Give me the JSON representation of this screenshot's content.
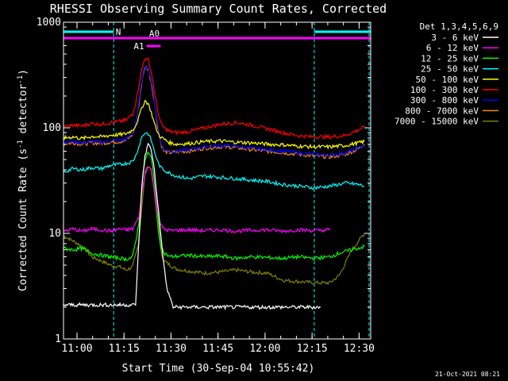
{
  "chart_data": {
    "type": "line",
    "title": "RHESSI Observing Summary Count Rates, Corrected",
    "xlabel": "Start Time (30-Sep-04 10:55:42)",
    "ylabel_parts": [
      "Corrected Count Rate (s",
      "-1",
      " detector",
      "-1",
      ")"
    ],
    "y_scale": "log",
    "ylim": [
      1,
      1000
    ],
    "xlim_min": [
      0,
      98
    ],
    "x_unit": "minutes after 10:55:42",
    "x_ticks": [
      {
        "label": "11:00",
        "min": 4.3
      },
      {
        "label": "11:15",
        "min": 19.3
      },
      {
        "label": "11:30",
        "min": 34.3
      },
      {
        "label": "11:45",
        "min": 49.3
      },
      {
        "label": "12:00",
        "min": 64.3
      },
      {
        "label": "12:15",
        "min": 79.3
      },
      {
        "label": "12:30",
        "min": 94.3
      }
    ],
    "y_ticks": [
      {
        "label": "1",
        "v": 1
      },
      {
        "label": "10",
        "v": 10
      },
      {
        "label": "100",
        "v": 100
      },
      {
        "label": "1000",
        "v": 1000
      }
    ],
    "legend": {
      "header": "Det 1,3,4,5,6,9",
      "placement": "right",
      "entries": [
        {
          "label": "3 - 6 keV",
          "color": "#ffffff"
        },
        {
          "label": "6 - 12 keV",
          "color": "#ff00ff"
        },
        {
          "label": "12 - 25 keV",
          "color": "#00ff00"
        },
        {
          "label": "25 - 50 keV",
          "color": "#00ffff"
        },
        {
          "label": "50 - 100 keV",
          "color": "#ffff00"
        },
        {
          "label": "100 - 300 keV",
          "color": "#ff0000"
        },
        {
          "label": "300 - 800 keV",
          "color": "#0000ff"
        },
        {
          "label": "800 - 7000 keV",
          "color": "#ff8800"
        },
        {
          "label": "7000 - 15000 keV",
          "color": "#808000"
        }
      ]
    },
    "annotations": {
      "night_label": "N",
      "night_intervals": [
        [
          0,
          16
        ],
        [
          80,
          98
        ]
      ],
      "night_color": "#00ffff",
      "vlines_min": [
        16,
        80
      ],
      "vline_color": "#00ffff",
      "attenuator_label": "A0",
      "attenuator_interval": [
        0,
        98
      ],
      "attenuator_color": "#ff00ff",
      "a1_label": "A1",
      "a1_interval": [
        26.5,
        31
      ]
    },
    "series": [
      {
        "name": "3 - 6 keV",
        "color": "#ffffff",
        "x": [
          0,
          2,
          4,
          6,
          8,
          10,
          12,
          14,
          16,
          18,
          20,
          22,
          23,
          24,
          25,
          26,
          27,
          28,
          29,
          30,
          31,
          32,
          33,
          35,
          40,
          45,
          50,
          55,
          60,
          65,
          70,
          75,
          80,
          82
        ],
        "y": [
          2.1,
          2.1,
          2.1,
          2.1,
          2.1,
          2.1,
          2.1,
          2.1,
          2.1,
          2.1,
          2.1,
          2.1,
          2.1,
          8,
          28,
          55,
          70,
          62,
          40,
          20,
          10,
          5,
          3,
          2,
          2,
          2,
          2,
          2,
          2,
          2,
          2,
          2,
          2,
          2
        ]
      },
      {
        "name": "6 - 12 keV",
        "color": "#ff00ff",
        "x": [
          0,
          3,
          6,
          9,
          12,
          15,
          18,
          20,
          22,
          24,
          25,
          26,
          27,
          28,
          29,
          30,
          31,
          32,
          34,
          40,
          45,
          50,
          55,
          60,
          65,
          70,
          75,
          80,
          85
        ],
        "y": [
          10.5,
          11,
          10.5,
          11,
          10.8,
          10.5,
          11,
          10.8,
          11,
          14,
          24,
          38,
          44,
          40,
          26,
          17,
          12,
          11,
          10.6,
          10.8,
          10.6,
          10.8,
          10.5,
          10.7,
          10.8,
          10.5,
          10.8,
          10.6,
          10.8
        ]
      },
      {
        "name": "12 - 25 keV",
        "color": "#00ff00",
        "x": [
          0,
          3,
          6,
          9,
          12,
          15,
          18,
          20,
          22,
          24,
          25,
          26,
          27,
          28,
          29,
          30,
          31,
          32,
          34,
          40,
          45,
          50,
          55,
          60,
          65,
          70,
          75,
          80,
          85,
          88,
          92,
          96
        ],
        "y": [
          7.2,
          7,
          7.2,
          6.5,
          6.2,
          6,
          5.8,
          5.7,
          5.9,
          12,
          28,
          50,
          58,
          52,
          32,
          15,
          8,
          6.5,
          6,
          6.2,
          6,
          6.1,
          5.8,
          6,
          5.9,
          5.8,
          6,
          5.8,
          6,
          6.5,
          7,
          7.5
        ]
      },
      {
        "name": "25 - 50 keV",
        "color": "#00ffff",
        "x": [
          0,
          3,
          6,
          9,
          12,
          15,
          18,
          20,
          22,
          23,
          24,
          25,
          26,
          27,
          28,
          29,
          30,
          31,
          32,
          34,
          36,
          40,
          45,
          50,
          55,
          60,
          65,
          70,
          75,
          80,
          85,
          90,
          94,
          96
        ],
        "y": [
          38,
          41,
          40,
          42,
          41,
          44,
          45,
          46,
          48,
          54,
          66,
          82,
          90,
          88,
          76,
          60,
          48,
          42,
          40,
          37,
          35,
          33,
          35,
          34,
          33,
          32,
          31,
          29,
          28,
          27,
          28,
          30,
          29,
          28
        ]
      },
      {
        "name": "50 - 100 keV",
        "color": "#ffff00",
        "x": [
          0,
          3,
          6,
          9,
          12,
          15,
          18,
          20,
          22,
          23,
          24,
          25,
          26,
          27,
          28,
          29,
          30,
          31,
          32,
          34,
          36,
          40,
          45,
          50,
          55,
          60,
          65,
          70,
          75,
          80,
          85,
          90,
          94,
          96
        ],
        "y": [
          80,
          82,
          79,
          83,
          82,
          85,
          86,
          88,
          95,
          105,
          125,
          155,
          180,
          170,
          140,
          110,
          90,
          82,
          78,
          72,
          70,
          71,
          74,
          75,
          73,
          72,
          70,
          69,
          67,
          66,
          66,
          68,
          72,
          74
        ]
      },
      {
        "name": "100 - 300 keV",
        "color": "#ff0000",
        "x": [
          0,
          3,
          6,
          9,
          12,
          15,
          18,
          20,
          22,
          23,
          24,
          25,
          26,
          27,
          28,
          29,
          30,
          31,
          32,
          34,
          36,
          40,
          45,
          50,
          55,
          60,
          65,
          70,
          75,
          80,
          85,
          90,
          94,
          96
        ],
        "y": [
          102,
          106,
          104,
          110,
          108,
          112,
          115,
          118,
          135,
          170,
          250,
          360,
          460,
          440,
          340,
          220,
          150,
          112,
          100,
          92,
          90,
          92,
          100,
          108,
          112,
          106,
          98,
          90,
          84,
          82,
          82,
          85,
          95,
          102
        ]
      },
      {
        "name": "300 - 800 keV",
        "color": "#0000ff",
        "x": [
          0,
          3,
          6,
          9,
          12,
          15,
          18,
          20,
          22,
          23,
          24,
          25,
          26,
          27,
          28,
          29,
          30,
          31,
          32,
          34,
          36,
          40,
          45,
          50,
          55,
          60,
          65,
          70,
          75,
          80,
          85,
          90,
          94,
          96
        ],
        "y": [
          73,
          74,
          72,
          74,
          73,
          75,
          76,
          78,
          88,
          110,
          170,
          280,
          390,
          370,
          280,
          180,
          110,
          75,
          62,
          60,
          60,
          62,
          66,
          68,
          67,
          64,
          62,
          60,
          58,
          56,
          55,
          58,
          64,
          68
        ]
      },
      {
        "name": "800 - 7000 keV",
        "color": "#ff8800",
        "x": [
          0,
          3,
          6,
          9,
          12,
          15,
          18,
          20,
          22,
          23,
          24,
          25,
          26,
          27,
          28,
          29,
          30,
          31,
          32,
          34,
          36,
          40,
          45,
          50,
          55,
          60,
          65,
          70,
          75,
          80,
          85,
          90,
          94,
          96
        ],
        "y": [
          70,
          72,
          70,
          72,
          71,
          73,
          74,
          76,
          86,
          108,
          165,
          270,
          380,
          360,
          270,
          175,
          105,
          72,
          60,
          58,
          59,
          60,
          64,
          66,
          65,
          62,
          60,
          58,
          56,
          54,
          53,
          56,
          63,
          70
        ]
      },
      {
        "name": "7000 - 15000 keV",
        "color": "#808000",
        "x": [
          0,
          3,
          6,
          9,
          12,
          15,
          18,
          20,
          22,
          24,
          25,
          26,
          27,
          28,
          29,
          30,
          31,
          32,
          34,
          36,
          40,
          45,
          50,
          55,
          60,
          65,
          70,
          75,
          80,
          85,
          88,
          92,
          96
        ],
        "y": [
          9.5,
          8.5,
          7.5,
          6,
          5.5,
          5,
          4.8,
          4.5,
          4.8,
          8,
          18,
          36,
          44,
          40,
          24,
          12,
          7,
          5.5,
          5,
          4.6,
          4.4,
          4.2,
          4.3,
          4.5,
          4.3,
          4.2,
          3.6,
          3.5,
          3.4,
          3.4,
          4,
          7,
          10
        ]
      }
    ]
  },
  "footer": {
    "timestamp": "21-Oct-2021 08:21"
  }
}
